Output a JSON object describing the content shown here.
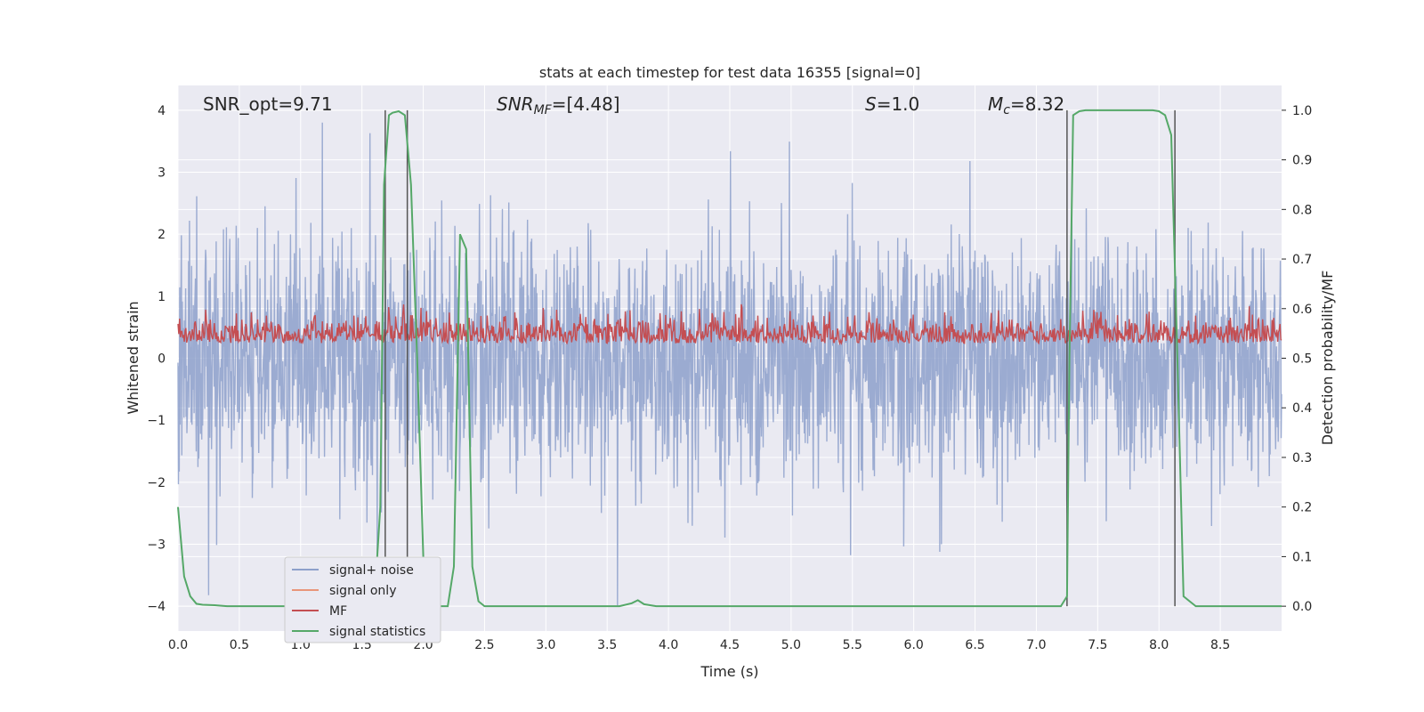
{
  "chart_data": {
    "type": "line",
    "title": "stats at each timestep for test data 16355 [signal=0]",
    "xlabel": "Time (s)",
    "ylabel": "Whitened strain",
    "y2label": "Detection probability/MF",
    "xlim": [
      0.0,
      9.0
    ],
    "ylim": [
      -4.4,
      4.4
    ],
    "y2lim": [
      -0.05,
      1.05
    ],
    "x_ticks": [
      "0.0",
      "0.5",
      "1.0",
      "1.5",
      "2.0",
      "2.5",
      "3.0",
      "3.5",
      "4.0",
      "4.5",
      "5.0",
      "5.5",
      "6.0",
      "6.5",
      "7.0",
      "7.5",
      "8.0",
      "8.5"
    ],
    "y_ticks": [
      "4",
      "3",
      "2",
      "1",
      "0",
      "−1",
      "−2",
      "−3",
      "−4"
    ],
    "y2_ticks": [
      "1.0",
      "0.9",
      "0.8",
      "0.7",
      "0.6",
      "0.5",
      "0.4",
      "0.3",
      "0.2",
      "0.1",
      "0.0"
    ],
    "grid": true,
    "legend_position": "lower-left",
    "annotations": {
      "snr_opt": "SNR_opt=9.71",
      "snr_mf": "SNR_MF=[4.48]",
      "s": "S=1.0",
      "mc": "M_c=8.32"
    },
    "series": [
      {
        "name": "signal+ noise",
        "color": "#8da0cb",
        "description": "whitened strain noise, roughly symmetric around 0, extremes about -4 to +3.8",
        "envelope_typical": [
          -1.6,
          1.6
        ],
        "envelope_peaks": [
          -4.0,
          3.8
        ]
      },
      {
        "name": "signal only",
        "color": "#e9967a",
        "values": []
      },
      {
        "name": "MF",
        "color": "#c44e52",
        "axis": "right",
        "description": "matched filter output, fluctuates between about 0.5 and 0.62 on right axis",
        "range": [
          0.5,
          0.62
        ]
      },
      {
        "name": "signal statistics",
        "color": "#55a868",
        "axis": "right",
        "x": [
          0.0,
          0.05,
          0.1,
          0.15,
          0.2,
          0.3,
          0.4,
          1.6,
          1.65,
          1.68,
          1.72,
          1.75,
          1.8,
          1.85,
          1.9,
          1.95,
          2.0,
          2.05,
          2.1,
          2.2,
          2.25,
          2.3,
          2.35,
          2.4,
          2.45,
          2.5,
          3.6,
          3.7,
          3.75,
          3.8,
          3.9,
          7.2,
          7.25,
          7.27,
          7.3,
          7.35,
          7.4,
          7.95,
          8.0,
          8.05,
          8.1,
          8.15,
          8.2,
          8.25,
          8.3,
          8.4,
          9.0
        ],
        "values": [
          0.2,
          0.06,
          0.02,
          0.005,
          0.003,
          0.002,
          0.0,
          0.0,
          0.2,
          0.85,
          0.99,
          0.995,
          0.998,
          0.99,
          0.85,
          0.5,
          0.1,
          0.0,
          0.0,
          0.0,
          0.08,
          0.75,
          0.72,
          0.08,
          0.01,
          0.0,
          0.0,
          0.006,
          0.012,
          0.004,
          0.0,
          0.0,
          0.02,
          0.5,
          0.99,
          0.998,
          1.0,
          1.0,
          0.998,
          0.99,
          0.95,
          0.5,
          0.02,
          0.01,
          0.0,
          0.0,
          0.0
        ]
      }
    ],
    "vertical_lines_x": [
      1.69,
      1.87,
      7.25,
      8.13
    ]
  }
}
